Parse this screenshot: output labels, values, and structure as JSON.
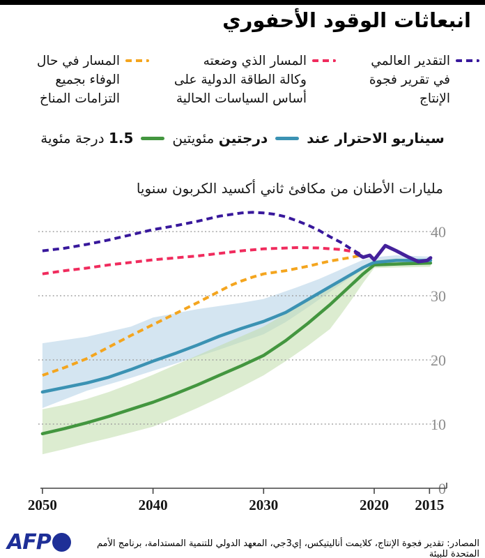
{
  "title": "انبعاثات الوقود الأحفوري",
  "legend": {
    "dashed_items": [
      {
        "id": "production-gap-estimate",
        "lines": "التقدير العالمي\nفي تقرير فجوة\nالإنتاج",
        "color": "#38189c"
      },
      {
        "id": "iea-current-policies",
        "lines": "المسار الذي وضعته\nوكالة الطاقة الدولية على\nأساس السياسات الحالية",
        "color": "#f02b5d"
      },
      {
        "id": "climate-pledges",
        "lines": "المسار في حال\nالوفاء بجميع\nالتزامات المناخ",
        "color": "#f4a51e"
      }
    ],
    "scenario": {
      "prefix": "سيناريو الاحترار عند",
      "items": [
        {
          "id": "two-degrees",
          "bold": "درجتين",
          "rest": " مئويتين",
          "color": "#3b92b3"
        },
        {
          "id": "one-point-five",
          "bold": "1.5",
          "rest": " درجة مئوية",
          "color": "#43963f"
        }
      ]
    }
  },
  "chart_data": {
    "type": "line",
    "unit_label": "مليارات الأطنان من مكافئ ثاني أكسيد الكربون سنويا",
    "x_axis_reversed": true,
    "x_ticks": [
      2050,
      2040,
      2030,
      2020,
      2015
    ],
    "y_ticks": [
      0,
      10,
      20,
      30,
      40
    ],
    "ylim": [
      0,
      45.5
    ],
    "xlim_years": [
      2051,
      2014.9
    ],
    "grid": "dotted-horizontal",
    "series": [
      {
        "id": "two-degrees-scenario",
        "label": "درجتين مئويتين",
        "style": "solid",
        "color": "#3b92b3",
        "width": 4.5,
        "points": [
          [
            2050,
            15
          ],
          [
            2048,
            15.7
          ],
          [
            2046,
            16.4
          ],
          [
            2044,
            17.3
          ],
          [
            2042,
            18.5
          ],
          [
            2040,
            19.8
          ],
          [
            2038,
            21
          ],
          [
            2036,
            22.3
          ],
          [
            2034,
            23.7
          ],
          [
            2032,
            24.9
          ],
          [
            2030,
            26
          ],
          [
            2029,
            26.7
          ],
          [
            2028,
            27.4
          ],
          [
            2026,
            29.4
          ],
          [
            2024,
            31.4
          ],
          [
            2022,
            33.4
          ],
          [
            2021,
            34.4
          ],
          [
            2020,
            35.2
          ],
          [
            2018,
            35.5
          ],
          [
            2014.9,
            35.5
          ]
        ],
        "band": {
          "color": "#a9cbe4",
          "opacity": 0.5,
          "top": [
            [
              2050,
              22.6
            ],
            [
              2046,
              23.6
            ],
            [
              2042,
              25.2
            ],
            [
              2040,
              26.6
            ],
            [
              2036,
              27.9
            ],
            [
              2032,
              28.9
            ],
            [
              2030,
              29.5
            ],
            [
              2027,
              31.3
            ],
            [
              2025,
              32.6
            ],
            [
              2023,
              34.1
            ],
            [
              2021,
              35.6
            ],
            [
              2020,
              36
            ],
            [
              2018,
              36.3
            ],
            [
              2015,
              36.1
            ],
            [
              2014.9,
              36
            ]
          ],
          "bottom": [
            [
              2050,
              12.5
            ],
            [
              2046,
              15.2
            ],
            [
              2042,
              17.2
            ],
            [
              2038,
              19.4
            ],
            [
              2034,
              21.6
            ],
            [
              2030,
              24
            ],
            [
              2028,
              25.9
            ],
            [
              2026,
              28.2
            ],
            [
              2024,
              30.6
            ],
            [
              2022,
              33
            ],
            [
              2021,
              34.2
            ],
            [
              2020,
              34.7
            ],
            [
              2018,
              34.9
            ],
            [
              2016,
              35
            ],
            [
              2014.9,
              34.9
            ]
          ]
        }
      },
      {
        "id": "one-point-five-scenario",
        "label": "1.5 درجة مئوية",
        "style": "solid",
        "color": "#43963f",
        "width": 4.5,
        "points": [
          [
            2050,
            8.5
          ],
          [
            2048,
            9.3
          ],
          [
            2046,
            10.2
          ],
          [
            2044,
            11.2
          ],
          [
            2042,
            12.3
          ],
          [
            2040,
            13.4
          ],
          [
            2038,
            14.7
          ],
          [
            2036,
            16.1
          ],
          [
            2034,
            17.6
          ],
          [
            2032,
            19.1
          ],
          [
            2030,
            20.7
          ],
          [
            2028,
            23
          ],
          [
            2026,
            25.7
          ],
          [
            2024,
            28.6
          ],
          [
            2022,
            31.8
          ],
          [
            2021,
            33.4
          ],
          [
            2020,
            34.8
          ],
          [
            2017,
            35
          ],
          [
            2014.9,
            35.1
          ]
        ],
        "band": {
          "color": "#bfdca9",
          "opacity": 0.55,
          "top": [
            [
              2050,
              12.3
            ],
            [
              2048,
              13
            ],
            [
              2046,
              13.9
            ],
            [
              2044,
              15
            ],
            [
              2042,
              16.3
            ],
            [
              2040,
              17.7
            ],
            [
              2038,
              19.2
            ],
            [
              2036,
              20.7
            ],
            [
              2034,
              22.2
            ],
            [
              2032,
              23.7
            ],
            [
              2030,
              25.2
            ],
            [
              2028,
              27.2
            ],
            [
              2026,
              29.3
            ],
            [
              2024,
              31.4
            ],
            [
              2022,
              33.5
            ],
            [
              2021,
              34.6
            ],
            [
              2020,
              35.5
            ],
            [
              2018,
              35.8
            ],
            [
              2015,
              35.7
            ],
            [
              2014.9,
              35.6
            ]
          ],
          "bottom": [
            [
              2050,
              5.3
            ],
            [
              2048,
              6.1
            ],
            [
              2046,
              7
            ],
            [
              2044,
              7.8
            ],
            [
              2042,
              8.7
            ],
            [
              2040,
              9.6
            ],
            [
              2038,
              11
            ],
            [
              2036,
              12.5
            ],
            [
              2034,
              14.1
            ],
            [
              2032,
              15.8
            ],
            [
              2030,
              17.6
            ],
            [
              2028,
              19.8
            ],
            [
              2026,
              22.2
            ],
            [
              2024,
              24.8
            ],
            [
              2023,
              27.1
            ],
            [
              2022,
              29.5
            ],
            [
              2021,
              32
            ],
            [
              2020,
              34.3
            ],
            [
              2018,
              34.4
            ],
            [
              2015,
              34.5
            ],
            [
              2014.9,
              34.6
            ]
          ]
        }
      },
      {
        "id": "production-gap-estimate",
        "label": "التقدير العالمي في تقرير فجوة الإنتاج",
        "style": "dashed",
        "color": "#38189c",
        "width": 4,
        "points": [
          [
            2050,
            37
          ],
          [
            2048,
            37.4
          ],
          [
            2046,
            38
          ],
          [
            2044,
            38.7
          ],
          [
            2042,
            39.5
          ],
          [
            2040,
            40.3
          ],
          [
            2038,
            40.9
          ],
          [
            2036,
            41.6
          ],
          [
            2034,
            42.4
          ],
          [
            2032,
            42.9
          ],
          [
            2031,
            43
          ],
          [
            2030,
            42.9
          ],
          [
            2029,
            42.7
          ],
          [
            2028,
            42.3
          ],
          [
            2027,
            41.7
          ],
          [
            2026,
            41
          ],
          [
            2025,
            40.2
          ],
          [
            2024,
            39.2
          ],
          [
            2023,
            38.3
          ],
          [
            2022,
            37.2
          ],
          [
            2021.3,
            36.5
          ]
        ]
      },
      {
        "id": "iea-current-policies",
        "label": "المسار الذي وضعته وكالة الطاقة الدولية على أساس السياسات الحالية",
        "style": "dashed",
        "color": "#f02b5d",
        "width": 4,
        "points": [
          [
            2050,
            33.4
          ],
          [
            2048,
            33.9
          ],
          [
            2046,
            34.3
          ],
          [
            2044,
            34.8
          ],
          [
            2042,
            35.2
          ],
          [
            2040,
            35.6
          ],
          [
            2038,
            35.9
          ],
          [
            2036,
            36.2
          ],
          [
            2034,
            36.6
          ],
          [
            2032,
            37
          ],
          [
            2030,
            37.3
          ],
          [
            2027,
            37.5
          ],
          [
            2025,
            37.45
          ],
          [
            2023,
            37.2
          ],
          [
            2022,
            36.9
          ],
          [
            2021.2,
            36.4
          ]
        ]
      },
      {
        "id": "climate-pledges",
        "label": "المسار في حال الوفاء بجميع التزامات المناخ",
        "style": "dashed",
        "color": "#f4a51e",
        "width": 4,
        "points": [
          [
            2050,
            17.6
          ],
          [
            2048,
            18.8
          ],
          [
            2046,
            20.2
          ],
          [
            2044,
            22
          ],
          [
            2042,
            23.8
          ],
          [
            2040,
            25.5
          ],
          [
            2038,
            27.2
          ],
          [
            2036,
            28.9
          ],
          [
            2035,
            29.8
          ],
          [
            2034,
            30.7
          ],
          [
            2033,
            31.6
          ],
          [
            2032,
            32.3
          ],
          [
            2031,
            32.9
          ],
          [
            2030,
            33.4
          ],
          [
            2028,
            33.9
          ],
          [
            2026,
            34.6
          ],
          [
            2024,
            35.4
          ],
          [
            2022,
            36
          ],
          [
            2021.2,
            36.3
          ]
        ]
      },
      {
        "id": "observed-emissions",
        "label": "",
        "style": "solid",
        "color": "#44219b",
        "width": 5,
        "points": [
          [
            2021.6,
            36.6
          ],
          [
            2021,
            36
          ],
          [
            2020.4,
            36.3
          ],
          [
            2020,
            35.6
          ],
          [
            2019,
            37.8
          ],
          [
            2018,
            37
          ],
          [
            2017,
            36.1
          ],
          [
            2016,
            35.3
          ],
          [
            2015.2,
            35.5
          ],
          [
            2014.9,
            35.9
          ]
        ]
      }
    ]
  },
  "footer": {
    "source": "المصادر: تقدير فجوة الإنتاج، كلايمت أناليتيكس، إي3جي، المعهد الدولي للتنمية المستدامة، برنامج الأمم المتحدة للبيئة",
    "logo_text": "AFP"
  }
}
